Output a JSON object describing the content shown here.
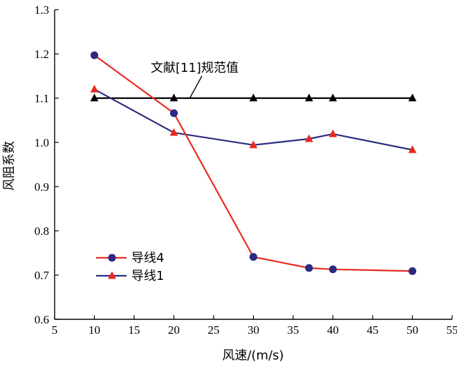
{
  "chart_data": {
    "type": "line",
    "xlabel": "风速/(m/s)",
    "ylabel": "风阻系数",
    "xlim": [
      5,
      55
    ],
    "ylim": [
      0.6,
      1.3
    ],
    "xticks": [
      5,
      10,
      15,
      20,
      25,
      30,
      35,
      40,
      45,
      50,
      55
    ],
    "yticks": [
      0.6,
      0.7,
      0.8,
      0.9,
      1.0,
      1.1,
      1.2,
      1.3
    ],
    "xtick_labels": [
      "5",
      "10",
      "15",
      "20",
      "25",
      "30",
      "35",
      "40",
      "45",
      "50",
      "55"
    ],
    "ytick_labels": [
      "0.6",
      "0.7",
      "0.8",
      "0.9",
      "1.0",
      "1.1",
      "1.2",
      "1.3"
    ],
    "grid": false,
    "legend": "lower-left",
    "series": [
      {
        "name": "导线4",
        "color": "#e8291f",
        "marker": "circle",
        "marker_color": "#2b2a80",
        "x": [
          10,
          20,
          30,
          37,
          40,
          50
        ],
        "y": [
          1.197,
          1.066,
          0.741,
          0.716,
          0.713,
          0.709
        ]
      },
      {
        "name": "导线1",
        "color": "#2b2a80",
        "marker": "triangle",
        "marker_color": "#e8291f",
        "x": [
          10,
          20,
          30,
          37,
          40,
          50
        ],
        "y": [
          1.12,
          1.022,
          0.994,
          1.008,
          1.019,
          0.983
        ]
      },
      {
        "name": "",
        "color": "#000000",
        "marker": "triangle",
        "marker_color": "#000000",
        "x": [
          10,
          20,
          30,
          37,
          40,
          50
        ],
        "y": [
          1.1,
          1.1,
          1.1,
          1.1,
          1.1,
          1.1
        ]
      }
    ],
    "annotation": {
      "text": "文献[11]规范值",
      "target": [
        22,
        1.1
      ]
    }
  }
}
